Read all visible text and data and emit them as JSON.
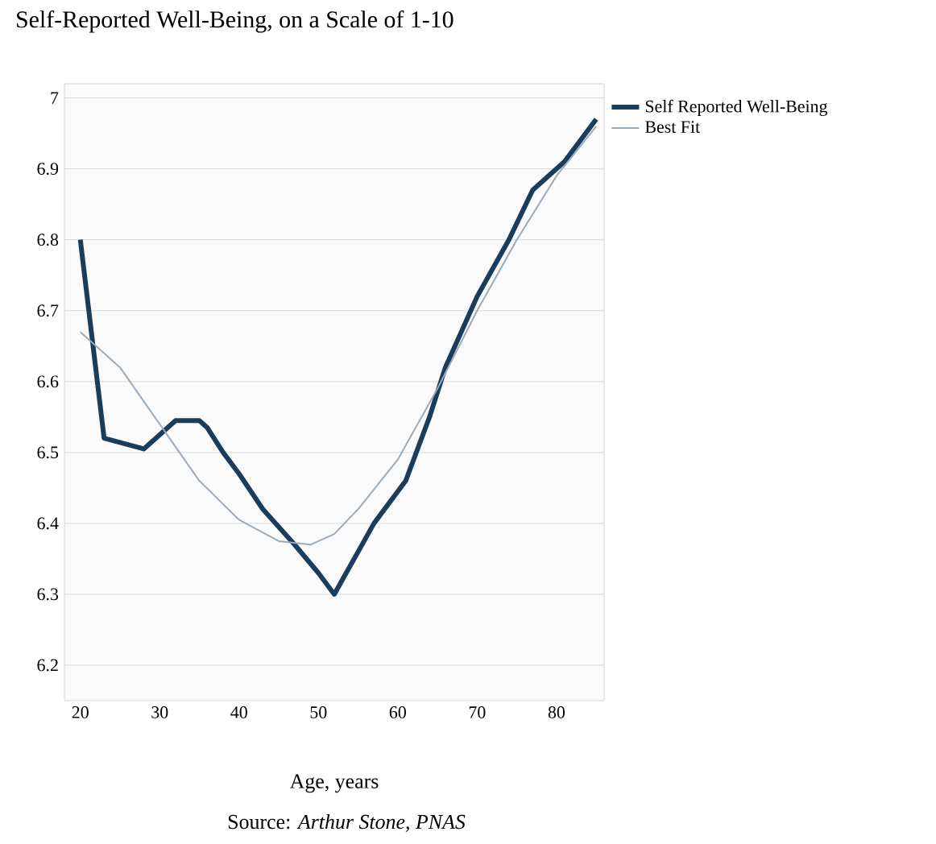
{
  "chart_data": {
    "type": "line",
    "title": "Self-Reported Well-Being, on a Scale of 1-10",
    "xlabel": "Age, years",
    "annotations": [
      "Source: *Arthur Stone, PNAS*"
    ],
    "series": [
      {
        "name": "Self Reported Well-Being",
        "color": "#1b3d5c",
        "x": [
          20,
          23,
          28,
          32,
          35,
          36,
          38,
          40,
          43,
          47,
          50,
          52,
          53,
          55,
          57,
          61,
          64,
          66,
          70,
          74,
          77,
          81,
          85
        ],
        "values": [
          6.8,
          6.52,
          6.505,
          6.545,
          6.545,
          6.535,
          6.5,
          6.47,
          6.42,
          6.37,
          6.33,
          6.3,
          6.32,
          6.36,
          6.4,
          6.46,
          6.55,
          6.62,
          6.72,
          6.8,
          6.87,
          6.91,
          6.97
        ]
      },
      {
        "name": "Best Fit",
        "color": "#9aabbb",
        "x": [
          20,
          25,
          30,
          35,
          40,
          45,
          49,
          52,
          55,
          60,
          65,
          70,
          75,
          80,
          85
        ],
        "values": [
          6.67,
          6.62,
          6.54,
          6.46,
          6.405,
          6.375,
          6.37,
          6.385,
          6.42,
          6.49,
          6.59,
          6.7,
          6.8,
          6.89,
          6.96
        ]
      }
    ],
    "xlim": [
      18,
      86
    ],
    "xticks": [
      20,
      30,
      40,
      50,
      60,
      70,
      80
    ],
    "ylim": [
      6.15,
      7.02
    ],
    "yticks": [
      6.2,
      6.3,
      6.4,
      6.5,
      6.6,
      6.7,
      6.8,
      6.9,
      7
    ],
    "grid": "y",
    "legend": "top right",
    "marker": "none",
    "line_style": "solid"
  }
}
